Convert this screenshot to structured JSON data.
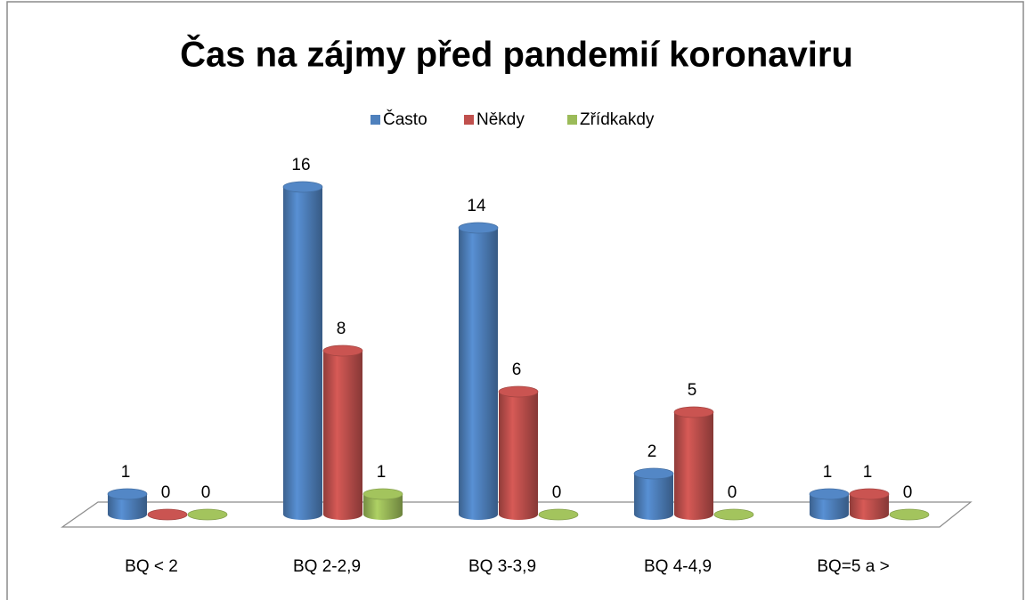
{
  "chart_data": {
    "type": "bar3d",
    "title": "Čas na zájmy před pandemií koronaviru",
    "categories": [
      "BQ < 2",
      "BQ 2-2,9",
      "BQ 3-3,9",
      "BQ 4-4,9",
      "BQ=5 a >"
    ],
    "series": [
      {
        "name": "Často",
        "color": "#4f81bd",
        "values": [
          1,
          16,
          14,
          2,
          1
        ]
      },
      {
        "name": "Někdy",
        "color": "#c0504d",
        "values": [
          0,
          8,
          6,
          5,
          1
        ]
      },
      {
        "name": "Zřídkakdy",
        "color": "#9bbb59",
        "values": [
          0,
          1,
          0,
          0,
          0
        ]
      }
    ],
    "legend": "top"
  }
}
